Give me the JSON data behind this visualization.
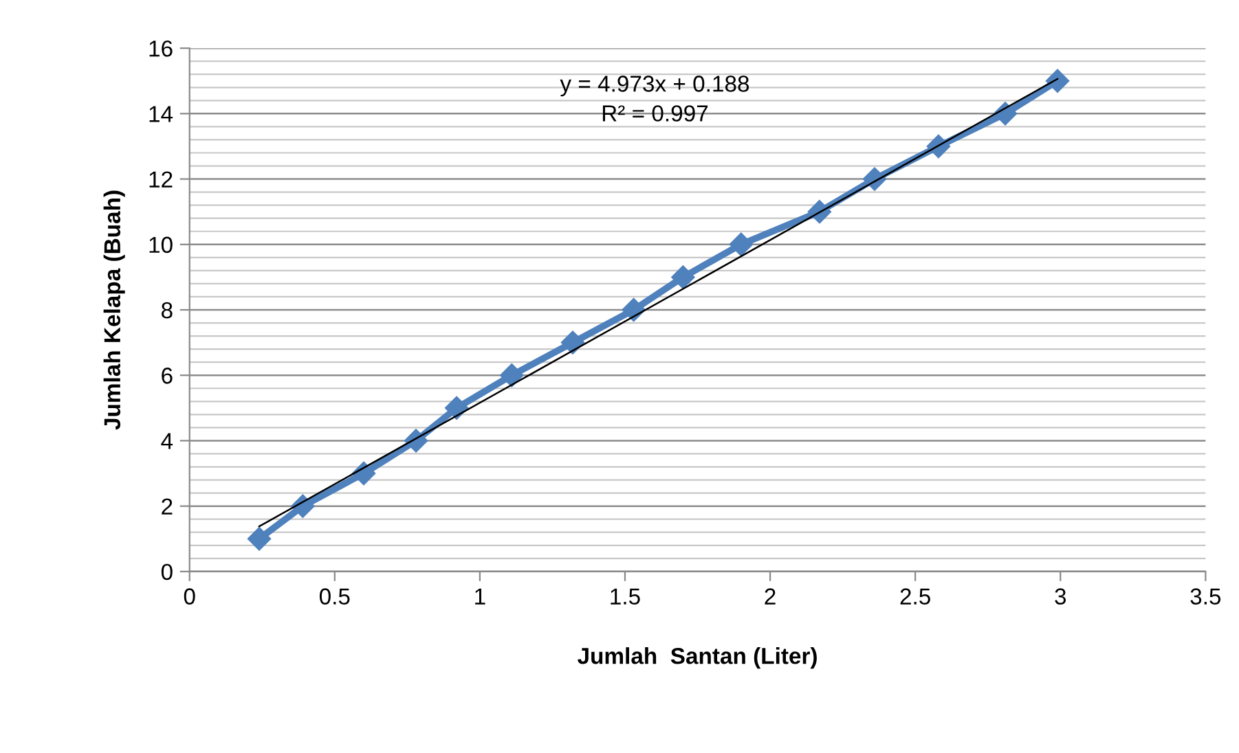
{
  "chart_data": {
    "type": "line",
    "xlabel": "Jumlah  Santan (Liter)",
    "ylabel": "Jumlah Kelapa (Buah)",
    "xlim": [
      0,
      3.5
    ],
    "xticks": [
      0,
      0.5,
      1,
      1.5,
      2,
      2.5,
      3,
      3.5
    ],
    "ylim": [
      0,
      16
    ],
    "yticks": [
      0,
      2,
      4,
      6,
      8,
      10,
      12,
      14,
      16
    ],
    "grid": "y",
    "legend": false,
    "marker": "diamond",
    "line_style": "solid",
    "series": [
      {
        "color": "#4f81bd",
        "x": [
          0.24,
          0.39,
          0.6,
          0.78,
          0.92,
          1.11,
          1.32,
          1.53,
          1.7,
          1.9,
          2.17,
          2.36,
          2.58,
          2.81,
          2.99
        ],
        "values": [
          1,
          2,
          3,
          4,
          5,
          6,
          7,
          8,
          9,
          10,
          11,
          12,
          13,
          14,
          15
        ]
      },
      {
        "color": "#000000",
        "marker": "none",
        "x": [
          0.24,
          2.99
        ],
        "values": [
          1.38,
          15.06
        ]
      }
    ],
    "annotations": [
      "y = 4.973x + 0.188\nR² = 0.997"
    ]
  }
}
